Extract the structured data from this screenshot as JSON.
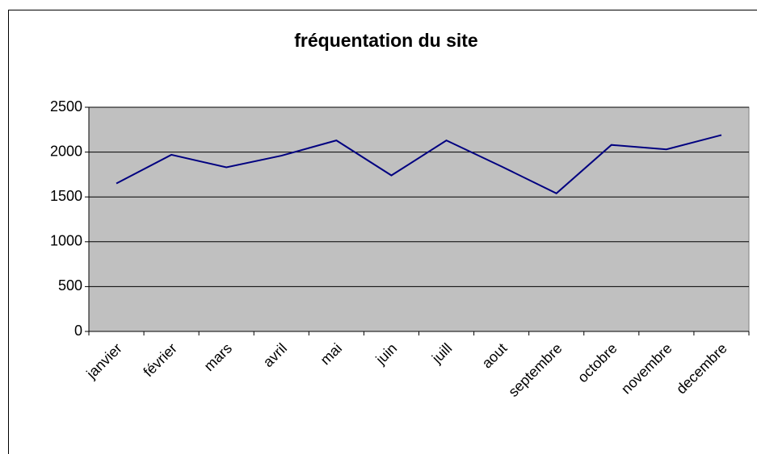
{
  "chart_data": {
    "type": "line",
    "title": "fréquentation du site",
    "categories": [
      "janvier",
      "février",
      "mars",
      "avril",
      "mai",
      "juin",
      "juill",
      "aout",
      "septembre",
      "octobre",
      "novembre",
      "decembre"
    ],
    "series": [
      {
        "name": "fréquentation",
        "color": "#000080",
        "values": [
          1650,
          1970,
          1830,
          1960,
          2130,
          1740,
          2130,
          1840,
          1540,
          2080,
          2030,
          2190
        ]
      }
    ],
    "ylim": [
      0,
      2500
    ],
    "yticks": [
      0,
      500,
      1000,
      1500,
      2000,
      2500
    ],
    "grid": true,
    "plot_background": "#c0c0c0"
  }
}
